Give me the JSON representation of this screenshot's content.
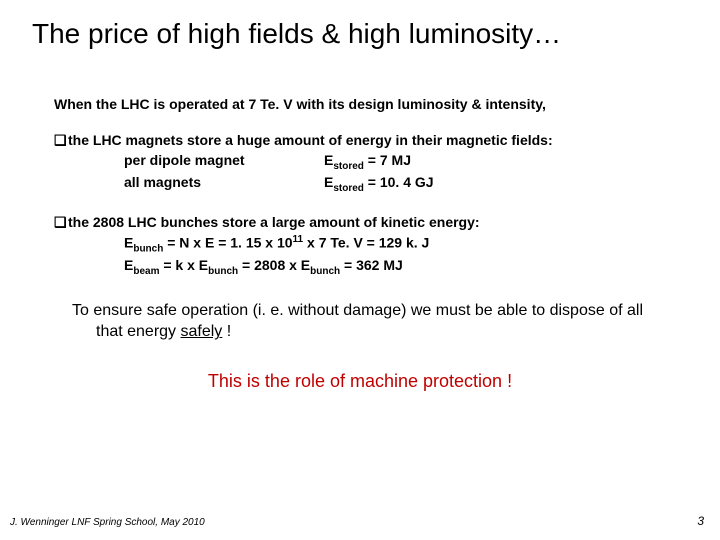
{
  "title": "The price of high fields & high luminosity…",
  "intro": "When the LHC is operated at 7 Te. V with its design luminosity & intensity,",
  "b1": {
    "head": "the LHC magnets store a huge amount of energy in their magnetic fields:",
    "r1a": "per dipole magnet",
    "r1b_pre": "E",
    "r1b_sub": "stored",
    "r1b_post": " = 7 MJ",
    "r2a": "all magnets",
    "r2b_pre": "E",
    "r2b_sub": "stored",
    "r2b_post": " = 10. 4 GJ"
  },
  "b2": {
    "head": "the 2808 LHC bunches store a large amount of kinetic energy:",
    "l1_a": "E",
    "l1_sub1": "bunch",
    "l1_b": " = N x E = 1. 15 x 10",
    "l1_sup": "11",
    "l1_c": " x 7 Te. V = 129 k. J",
    "l2_a": "E",
    "l2_sub1": "beam",
    "l2_b": "  = k x E",
    "l2_sub2": "bunch",
    "l2_c": " = 2808 x E",
    "l2_sub3": "bunch",
    "l2_d": "    = 362 MJ"
  },
  "safe_a": "To ensure safe operation (i. e. without damage) we must be able to dispose of all that energy ",
  "safe_u": "safely",
  "safe_b": " !",
  "role": "This is the role of machine protection !",
  "footer": "J. Wenninger LNF Spring School, May 2010",
  "pagenum": "3",
  "colors": {
    "role": "#c00000"
  }
}
